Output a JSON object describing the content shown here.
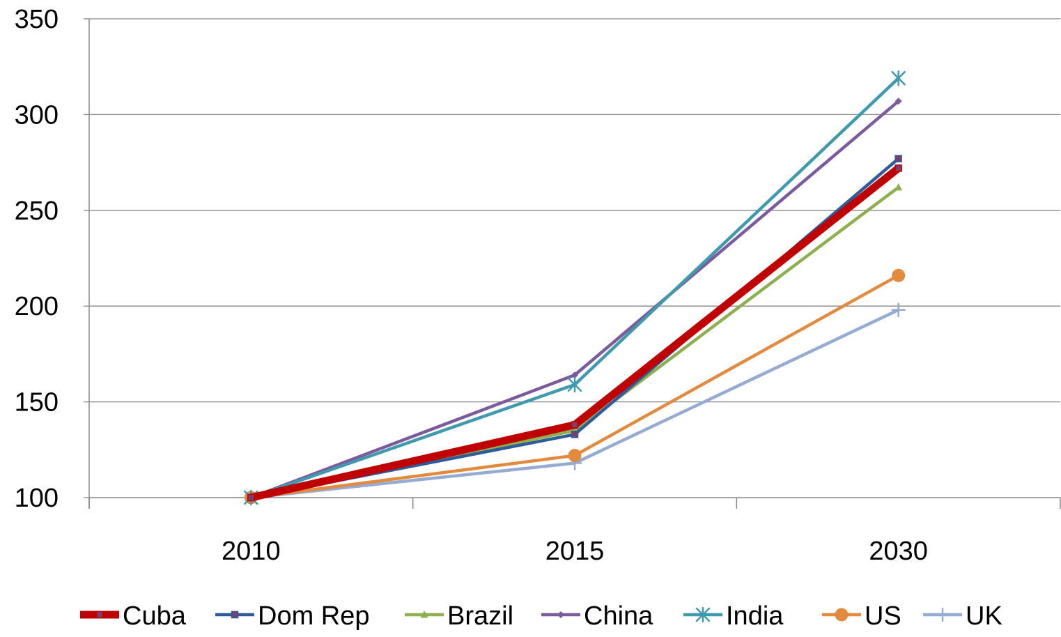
{
  "chart_data": {
    "type": "line",
    "title": "",
    "xlabel": "",
    "ylabel": "",
    "categories": [
      "2010",
      "2015",
      "2030"
    ],
    "ylim": [
      100,
      350
    ],
    "yticks": [
      100,
      150,
      200,
      250,
      300,
      350
    ],
    "grid": "horizontal",
    "legend_position": "bottom",
    "series": [
      {
        "name": "Cuba",
        "values": [
          100,
          138,
          272
        ],
        "color": "#C00000",
        "marker": "square",
        "emphasis": true
      },
      {
        "name": "Dom Rep",
        "values": [
          100,
          133,
          277
        ],
        "color": "#2E5B9A",
        "marker": "square",
        "emphasis": false
      },
      {
        "name": "Brazil",
        "values": [
          100,
          135,
          262
        ],
        "color": "#8CB050",
        "marker": "triangle",
        "emphasis": false
      },
      {
        "name": "China",
        "values": [
          100,
          164,
          307
        ],
        "color": "#7B5A9E",
        "marker": "diamond",
        "emphasis": false
      },
      {
        "name": "India",
        "values": [
          100,
          159,
          319
        ],
        "color": "#3F9AAE",
        "marker": "star",
        "emphasis": false
      },
      {
        "name": "US",
        "values": [
          100,
          122,
          216
        ],
        "color": "#E28A3D",
        "marker": "circle",
        "emphasis": false
      },
      {
        "name": "UK",
        "values": [
          100,
          118,
          198
        ],
        "color": "#96ABD3",
        "marker": "plus",
        "emphasis": false
      }
    ]
  }
}
